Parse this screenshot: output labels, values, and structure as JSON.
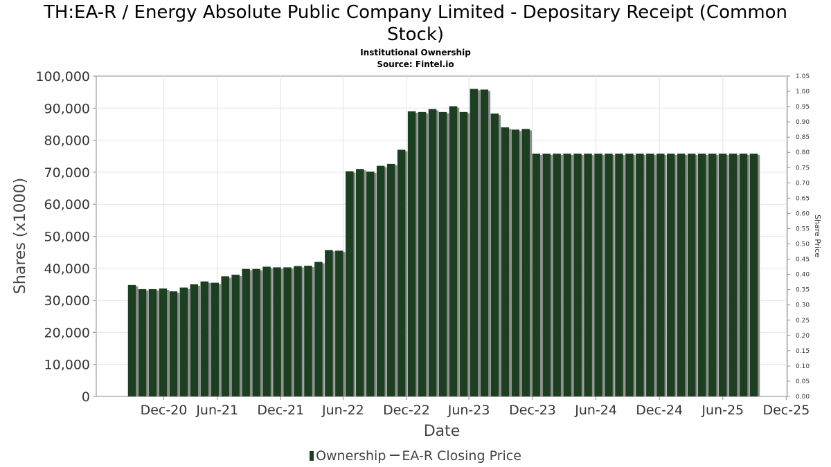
{
  "title": "TH:EA-R / Energy Absolute Public Company Limited - Depositary Receipt (Common Stock)",
  "title_line1": "TH:EA-R / Energy Absolute Public Company Limited - Depositary Receipt (Common",
  "title_line2": "Stock)",
  "subtitle": "Institutional Ownership",
  "source": "Source: Fintel.io",
  "colors": {
    "bar": "#1c3f21",
    "bar_shadow": "#8c8c8c",
    "grid": "#e3e3e3",
    "axis": "#888888"
  },
  "chart_data": {
    "type": "bar",
    "xlabel": "Date",
    "ylabel": "Shares (x1000)",
    "y2label": "Share Price",
    "ylim": [
      0,
      100000
    ],
    "y_ticks": [
      "0",
      "10,000",
      "20,000",
      "30,000",
      "40,000",
      "50,000",
      "60,000",
      "70,000",
      "80,000",
      "90,000",
      "100,000"
    ],
    "y2lim": [
      0,
      1.05
    ],
    "y2_ticks": [
      "0.00",
      "0.05",
      "0.10",
      "0.15",
      "0.20",
      "0.25",
      "0.30",
      "0.35",
      "0.40",
      "0.45",
      "0.50",
      "0.55",
      "0.60",
      "0.65",
      "0.70",
      "0.75",
      "0.80",
      "0.85",
      "0.90",
      "0.95",
      "1.00",
      "1.05"
    ],
    "x_ticks": [
      "Dec-20",
      "Jun-21",
      "Dec-21",
      "Jun-22",
      "Dec-22",
      "Jun-23",
      "Dec-23",
      "Jun-24",
      "Dec-24",
      "Jun-25",
      "Dec-25"
    ],
    "grid": true,
    "legend_position": "bottom",
    "series": [
      {
        "name": "Ownership",
        "values": [
          34800,
          33500,
          33500,
          33700,
          32800,
          34000,
          35000,
          35900,
          35500,
          37500,
          38000,
          39800,
          39800,
          40500,
          40300,
          40300,
          40700,
          40800,
          42000,
          45700,
          45500,
          70300,
          71000,
          70200,
          72000,
          72600,
          77000,
          89000,
          88800,
          89700,
          88800,
          90600,
          88800,
          96000,
          95800,
          88300,
          84000,
          83300,
          83500,
          75800,
          75800,
          75800,
          75800,
          75800,
          75800,
          75800,
          75800,
          75800,
          75800,
          75800,
          75800,
          75800,
          75800,
          75800,
          75800,
          75800,
          75800,
          75800,
          75800,
          75800,
          75800
        ]
      },
      {
        "name": "EA-R Closing Price",
        "values": []
      }
    ]
  }
}
